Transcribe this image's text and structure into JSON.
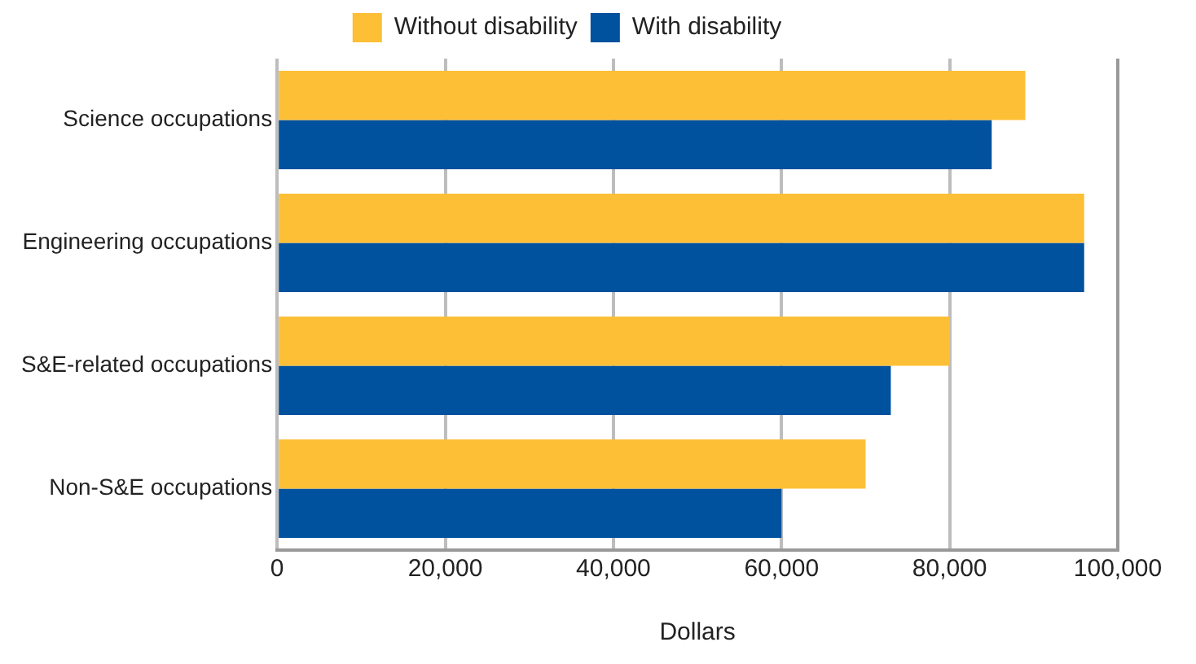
{
  "chart_data": {
    "type": "bar",
    "orientation": "horizontal",
    "xlabel": "Dollars",
    "categories": [
      "Science occupations",
      "Engineering occupations",
      "S&E-related occupations",
      "Non-S&E occupations"
    ],
    "series": [
      {
        "name": "Without disability",
        "color": "#fdbf35",
        "values": [
          89000,
          96000,
          80000,
          70000
        ]
      },
      {
        "name": "With disability",
        "color": "#00519e",
        "values": [
          85000,
          96000,
          73000,
          60000
        ]
      }
    ],
    "xlim": [
      0,
      100000
    ],
    "xticks": [
      0,
      {
        "value": 20000,
        "label": "20,000"
      },
      {
        "value": 40000,
        "label": "40,000"
      },
      {
        "value": 60000,
        "label": "60,000"
      },
      {
        "value": 80000,
        "label": "80,000"
      },
      {
        "value": 100000,
        "label": "100,000"
      }
    ],
    "grid": "x",
    "legend": "top"
  }
}
